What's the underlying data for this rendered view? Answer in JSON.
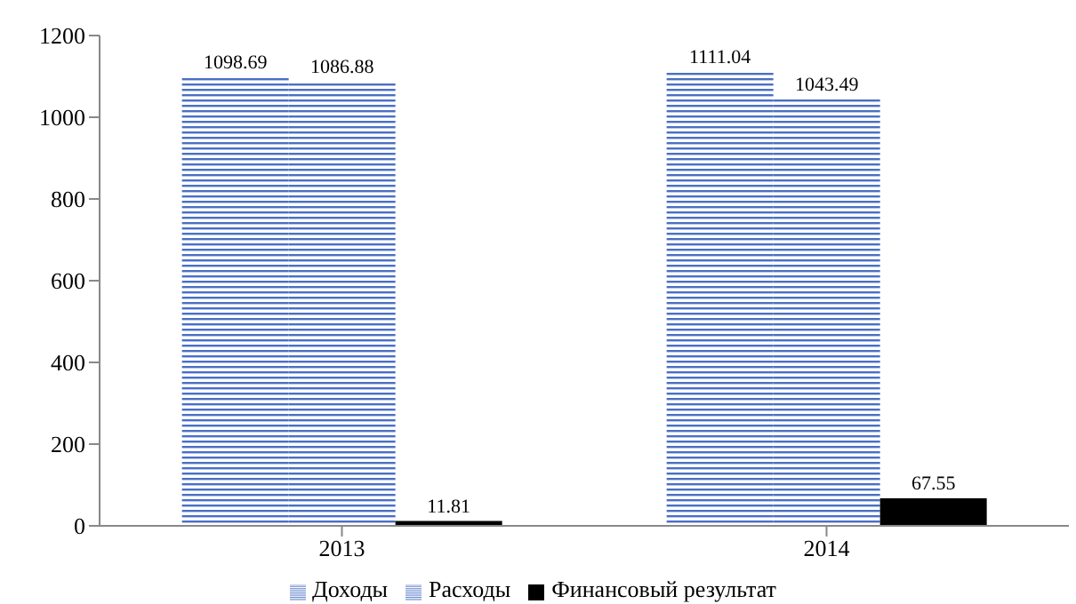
{
  "chart_data": {
    "type": "bar",
    "categories": [
      "2013",
      "2014"
    ],
    "series": [
      {
        "name": "Доходы",
        "color": "#4a6fc4",
        "values": [
          1098.69,
          1111.04
        ]
      },
      {
        "name": "Расходы",
        "color": "#4a6fc4",
        "values": [
          1086.88,
          1043.49
        ]
      },
      {
        "name": "Финансовый результат",
        "color": "#000000",
        "values": [
          11.81,
          67.55
        ]
      }
    ],
    "ylim": [
      0,
      1200
    ],
    "yticks": [
      0,
      200,
      400,
      600,
      800,
      1000,
      1200
    ],
    "grid": false,
    "legend": "bottom",
    "data_labels": true
  }
}
